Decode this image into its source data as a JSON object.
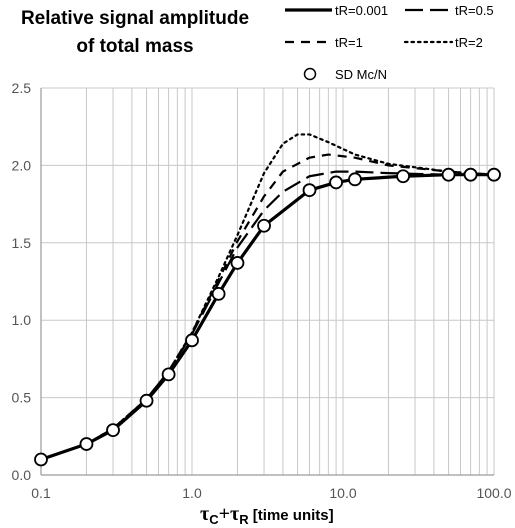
{
  "chart_data": {
    "type": "line",
    "title_lines": [
      "Relative signal amplitude",
      "of total mass"
    ],
    "xlabel": {
      "symbol": "τ",
      "sub1": "C",
      "plus": "+",
      "sub2": "R",
      "unit": "[time units]"
    },
    "x_scale": "log",
    "xlim": [
      0.1,
      100
    ],
    "ylim": [
      0,
      2.5
    ],
    "x_ticks": [
      "0.1",
      "1.0",
      "10.0",
      "100.0"
    ],
    "y_ticks": [
      "0.0",
      "0.5",
      "1.0",
      "1.5",
      "2.0",
      "2.5"
    ],
    "grid": {
      "x_minor": true,
      "y_major": true
    },
    "legend_placement": "top-right",
    "series": [
      {
        "name": "tR=0.001",
        "style": "solid",
        "x": [
          0.1,
          0.2,
          0.3,
          0.5,
          0.7,
          1.0,
          1.5,
          2.0,
          3.0,
          6.0,
          9.0,
          12.0,
          25.0,
          50.0,
          70.0,
          100.0
        ],
        "y": [
          0.1,
          0.2,
          0.29,
          0.48,
          0.65,
          0.87,
          1.17,
          1.37,
          1.61,
          1.84,
          1.89,
          1.91,
          1.93,
          1.94,
          1.94,
          1.94
        ]
      },
      {
        "name": "tR=0.5",
        "style": "longdash",
        "x": [
          0.1,
          0.2,
          0.3,
          0.5,
          0.7,
          1.0,
          1.5,
          2.0,
          3.0,
          4.0,
          6.0,
          9.0,
          12.0,
          20.0,
          50.0,
          100.0
        ],
        "y": [
          0.1,
          0.2,
          0.3,
          0.49,
          0.67,
          0.91,
          1.24,
          1.47,
          1.71,
          1.83,
          1.93,
          1.96,
          1.96,
          1.95,
          1.94,
          1.94
        ]
      },
      {
        "name": "tR=1",
        "style": "dash",
        "x": [
          0.1,
          0.2,
          0.3,
          0.5,
          0.7,
          1.0,
          1.5,
          2.0,
          3.0,
          4.0,
          6.0,
          8.0,
          12.0,
          20.0,
          50.0,
          100.0
        ],
        "y": [
          0.1,
          0.2,
          0.3,
          0.49,
          0.67,
          0.92,
          1.26,
          1.51,
          1.8,
          1.96,
          2.05,
          2.07,
          2.05,
          2.0,
          1.96,
          1.94
        ]
      },
      {
        "name": "tR=2",
        "style": "dot",
        "x": [
          0.1,
          0.2,
          0.3,
          0.5,
          0.7,
          1.0,
          1.5,
          2.0,
          3.0,
          4.0,
          5.0,
          6.0,
          8.0,
          12.0,
          20.0,
          50.0,
          100.0
        ],
        "y": [
          0.1,
          0.2,
          0.3,
          0.49,
          0.67,
          0.92,
          1.28,
          1.55,
          1.95,
          2.14,
          2.2,
          2.2,
          2.15,
          2.07,
          2.01,
          1.96,
          1.94
        ]
      },
      {
        "name": "SD Mc/N",
        "style": "marker",
        "x": [
          0.1,
          0.2,
          0.3,
          0.5,
          0.7,
          1.0,
          1.5,
          2.0,
          3.0,
          6.0,
          9.0,
          12.0,
          25.0,
          50.0,
          70.0,
          100.0
        ],
        "y": [
          0.1,
          0.2,
          0.29,
          0.48,
          0.65,
          0.87,
          1.17,
          1.37,
          1.61,
          1.84,
          1.89,
          1.91,
          1.93,
          1.94,
          1.94,
          1.94
        ]
      }
    ],
    "colors": {
      "line": "#000000",
      "grid": "#c8c8c8",
      "axis": "#9a9a9a",
      "tick_text": "#555555"
    }
  }
}
